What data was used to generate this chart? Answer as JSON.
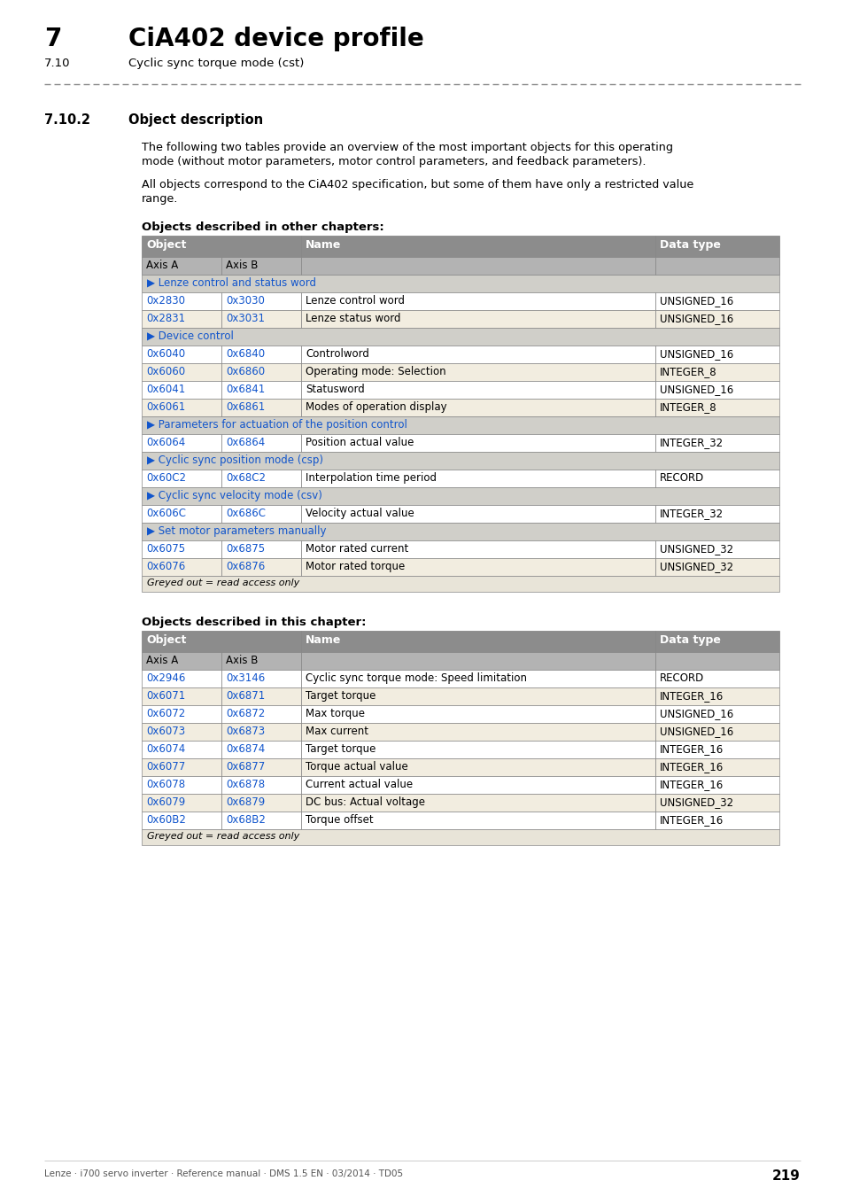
{
  "page_title_num": "7",
  "page_title_text": "CiA402 device profile",
  "page_subtitle_num": "7.10",
  "page_subtitle_text": "Cyclic sync torque mode (cst)",
  "section_num": "7.10.2",
  "section_title": "Object description",
  "para1": "The following two tables provide an overview of the most important objects for this operating\nmode (without motor parameters, motor control parameters, and feedback parameters).",
  "para2": "All objects correspond to the CiA402 specification, but some of them have only a restricted value\nrange.",
  "table1_title": "Objects described in other chapters:",
  "table1_rows": [
    {
      "type": "section",
      "text": "▶ Lenze control and status word"
    },
    {
      "type": "data",
      "a": "0x2830",
      "b": "0x3030",
      "name": "Lenze control word",
      "dtype": "UNSIGNED_16",
      "shade": false
    },
    {
      "type": "data",
      "a": "0x2831",
      "b": "0x3031",
      "name": "Lenze status word",
      "dtype": "UNSIGNED_16",
      "shade": true
    },
    {
      "type": "section",
      "text": "▶ Device control"
    },
    {
      "type": "data",
      "a": "0x6040",
      "b": "0x6840",
      "name": "Controlword",
      "dtype": "UNSIGNED_16",
      "shade": false
    },
    {
      "type": "data",
      "a": "0x6060",
      "b": "0x6860",
      "name": "Operating mode: Selection",
      "dtype": "INTEGER_8",
      "shade": true
    },
    {
      "type": "data",
      "a": "0x6041",
      "b": "0x6841",
      "name": "Statusword",
      "dtype": "UNSIGNED_16",
      "shade": false
    },
    {
      "type": "data",
      "a": "0x6061",
      "b": "0x6861",
      "name": "Modes of operation display",
      "dtype": "INTEGER_8",
      "shade": true
    },
    {
      "type": "section",
      "text": "▶ Parameters for actuation of the position control"
    },
    {
      "type": "data",
      "a": "0x6064",
      "b": "0x6864",
      "name": "Position actual value",
      "dtype": "INTEGER_32",
      "shade": false
    },
    {
      "type": "section",
      "text": "▶ Cyclic sync position mode (csp)"
    },
    {
      "type": "data",
      "a": "0x60C2",
      "b": "0x68C2",
      "name": "Interpolation time period",
      "dtype": "RECORD",
      "shade": false
    },
    {
      "type": "section",
      "text": "▶ Cyclic sync velocity mode (csv)"
    },
    {
      "type": "data",
      "a": "0x606C",
      "b": "0x686C",
      "name": "Velocity actual value",
      "dtype": "INTEGER_32",
      "shade": false
    },
    {
      "type": "section",
      "text": "▶ Set motor parameters manually"
    },
    {
      "type": "data",
      "a": "0x6075",
      "b": "0x6875",
      "name": "Motor rated current",
      "dtype": "UNSIGNED_32",
      "shade": false
    },
    {
      "type": "data",
      "a": "0x6076",
      "b": "0x6876",
      "name": "Motor rated torque",
      "dtype": "UNSIGNED_32",
      "shade": true
    },
    {
      "type": "footer",
      "text": "Greyed out = read access only"
    }
  ],
  "table2_title": "Objects described in this chapter:",
  "table2_rows": [
    {
      "type": "data",
      "a": "0x2946",
      "b": "0x3146",
      "name": "Cyclic sync torque mode: Speed limitation",
      "dtype": "RECORD",
      "shade": false
    },
    {
      "type": "data",
      "a": "0x6071",
      "b": "0x6871",
      "name": "Target torque",
      "dtype": "INTEGER_16",
      "shade": true
    },
    {
      "type": "data",
      "a": "0x6072",
      "b": "0x6872",
      "name": "Max torque",
      "dtype": "UNSIGNED_16",
      "shade": false
    },
    {
      "type": "data",
      "a": "0x6073",
      "b": "0x6873",
      "name": "Max current",
      "dtype": "UNSIGNED_16",
      "shade": true
    },
    {
      "type": "data",
      "a": "0x6074",
      "b": "0x6874",
      "name": "Target torque",
      "dtype": "INTEGER_16",
      "shade": false
    },
    {
      "type": "data",
      "a": "0x6077",
      "b": "0x6877",
      "name": "Torque actual value",
      "dtype": "INTEGER_16",
      "shade": true
    },
    {
      "type": "data",
      "a": "0x6078",
      "b": "0x6878",
      "name": "Current actual value",
      "dtype": "INTEGER_16",
      "shade": false
    },
    {
      "type": "data",
      "a": "0x6079",
      "b": "0x6879",
      "name": "DC bus: Actual voltage",
      "dtype": "UNSIGNED_32",
      "shade": true
    },
    {
      "type": "data",
      "a": "0x60B2",
      "b": "0x68B2",
      "name": "Torque offset",
      "dtype": "INTEGER_16",
      "shade": false
    },
    {
      "type": "footer",
      "text": "Greyed out = read access only"
    }
  ],
  "footer_text": "Lenze · i700 servo inverter · Reference manual · DMS 1.5 EN · 03/2014 · TD05",
  "page_num": "219",
  "bg_color": "#ffffff",
  "header_bg": "#8c8c8c",
  "subheader_bg": "#b3b3b3",
  "section_bg": "#d0cfc9",
  "row_bg": "#ffffff",
  "row_shade_bg": "#f2ede0",
  "footer_row_bg": "#e8e4d8",
  "border_color": "#888888",
  "link_color": "#1155cc",
  "text_color": "#000000",
  "dash_color": "#888888"
}
